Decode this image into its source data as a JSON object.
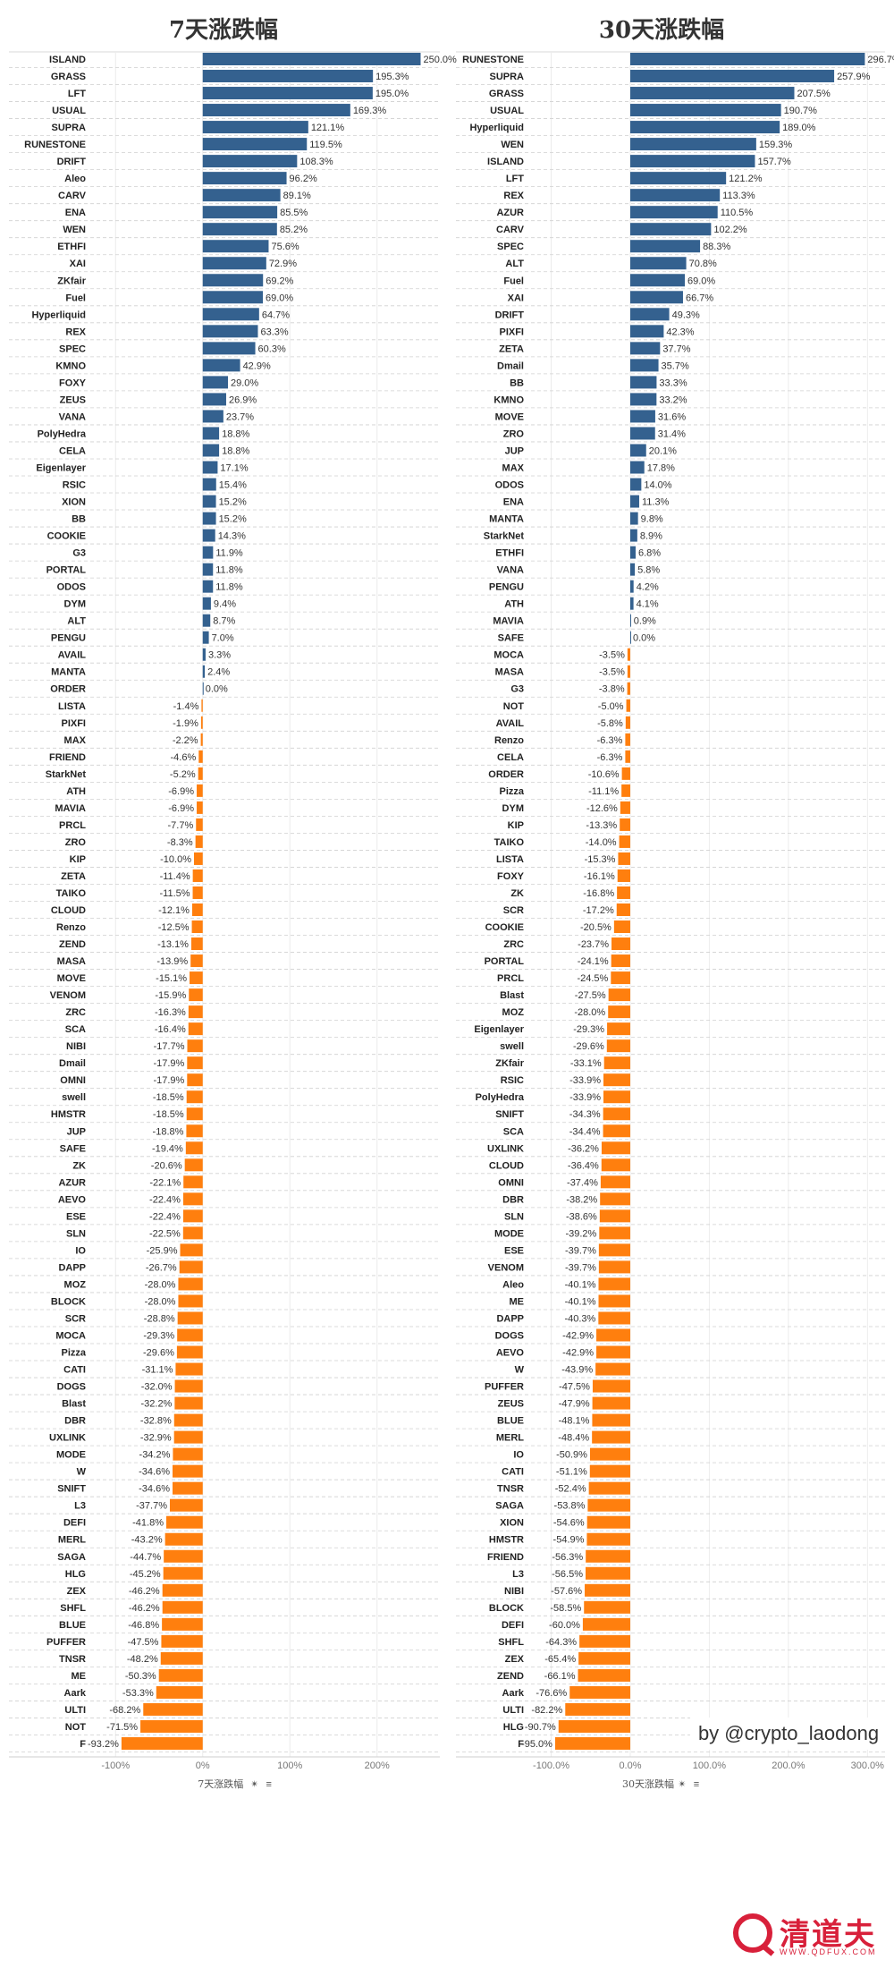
{
  "credit": "by @crypto_laodong",
  "logo": {
    "name": "清道夫",
    "site": "WWW.QDFUX.COM"
  },
  "colors": {
    "positive": "#34618f",
    "negative": "#ff7f0e"
  },
  "chart_data": [
    {
      "type": "bar",
      "orientation": "horizontal",
      "title": "7天涨跌幅",
      "xlabel": "7天涨跌幅",
      "xlim": [
        -130,
        270
      ],
      "xticks": [
        -100,
        0,
        100,
        200
      ],
      "xtick_labels": [
        "-100%",
        "0%",
        "100%",
        "200%"
      ],
      "categories": [
        "ISLAND",
        "GRASS",
        "LFT",
        "USUAL",
        "SUPRA",
        "RUNESTONE",
        "DRIFT",
        "Aleo",
        "CARV",
        "ENA",
        "WEN",
        "ETHFI",
        "XAI",
        "ZKfair",
        "Fuel",
        "Hyperliquid",
        "REX",
        "SPEC",
        "KMNO",
        "FOXY",
        "ZEUS",
        "VANA",
        "PolyHedra",
        "CELA",
        "Eigenlayer",
        "RSIC",
        "XION",
        "BB",
        "COOKIE",
        "G3",
        "PORTAL",
        "ODOS",
        "DYM",
        "ALT",
        "PENGU",
        "AVAIL",
        "MANTA",
        "ORDER",
        "LISTA",
        "PIXFI",
        "MAX",
        "FRIEND",
        "StarkNet",
        "ATH",
        "MAVIA",
        "PRCL",
        "ZRO",
        "KIP",
        "ZETA",
        "TAIKO",
        "CLOUD",
        "Renzo",
        "ZEND",
        "MASA",
        "MOVE",
        "VENOM",
        "ZRC",
        "SCA",
        "NIBI",
        "Dmail",
        "OMNI",
        "swell",
        "HMSTR",
        "JUP",
        "SAFE",
        "ZK",
        "AZUR",
        "AEVO",
        "ESE",
        "SLN",
        "IO",
        "DAPP",
        "MOZ",
        "BLOCK",
        "SCR",
        "MOCA",
        "Pizza",
        "CATI",
        "DOGS",
        "Blast",
        "DBR",
        "UXLINK",
        "MODE",
        "W",
        "SNIFT",
        "L3",
        "DEFI",
        "MERL",
        "SAGA",
        "HLG",
        "ZEX",
        "SHFL",
        "BLUE",
        "PUFFER",
        "TNSR",
        "ME",
        "Aark",
        "ULTI",
        "NOT",
        "F"
      ],
      "values": [
        250.0,
        195.3,
        195.0,
        169.3,
        121.1,
        119.5,
        108.3,
        96.2,
        89.1,
        85.5,
        85.2,
        75.6,
        72.9,
        69.2,
        69.0,
        64.7,
        63.3,
        60.3,
        42.9,
        29.0,
        26.9,
        23.7,
        18.8,
        18.8,
        17.1,
        15.4,
        15.2,
        15.2,
        14.3,
        11.9,
        11.8,
        11.8,
        9.4,
        8.7,
        7.0,
        3.3,
        2.4,
        0.0,
        -1.4,
        -1.9,
        -2.2,
        -4.6,
        -5.2,
        -6.9,
        -6.9,
        -7.7,
        -8.3,
        -10.0,
        -11.4,
        -11.5,
        -12.1,
        -12.5,
        -13.1,
        -13.9,
        -15.1,
        -15.9,
        -16.3,
        -16.4,
        -17.7,
        -17.9,
        -17.9,
        -18.5,
        -18.5,
        -18.8,
        -19.4,
        -20.6,
        -22.1,
        -22.4,
        -22.4,
        -22.5,
        -25.9,
        -26.7,
        -28.0,
        -28.0,
        -28.8,
        -29.3,
        -29.6,
        -31.1,
        -32.0,
        -32.2,
        -32.8,
        -32.9,
        -34.2,
        -34.6,
        -34.6,
        -37.7,
        -41.8,
        -43.2,
        -44.7,
        -45.2,
        -46.2,
        -46.2,
        -46.8,
        -47.5,
        -48.2,
        -50.3,
        -53.3,
        -68.2,
        -71.5,
        -93.2
      ],
      "value_labels": [
        "250.0%",
        "195.3%",
        "195.0%",
        "169.3%",
        "121.1%",
        "119.5%",
        "108.3%",
        "96.2%",
        "89.1%",
        "85.5%",
        "85.2%",
        "75.6%",
        "72.9%",
        "69.2%",
        "69.0%",
        "64.7%",
        "63.3%",
        "60.3%",
        "42.9%",
        "29.0%",
        "26.9%",
        "23.7%",
        "18.8%",
        "18.8%",
        "17.1%",
        "15.4%",
        "15.2%",
        "15.2%",
        "14.3%",
        "11.9%",
        "11.8%",
        "11.8%",
        "9.4%",
        "8.7%",
        "7.0%",
        "3.3%",
        "2.4%",
        "0.0%",
        "-1.4%",
        "-1.9%",
        "-2.2%",
        "-4.6%",
        "-5.2%",
        "-6.9%",
        "-6.9%",
        "-7.7%",
        "-8.3%",
        "-10.0%",
        "-11.4%",
        "-11.5%",
        "-12.1%",
        "-12.5%",
        "-13.1%",
        "-13.9%",
        "-15.1%",
        "-15.9%",
        "-16.3%",
        "-16.4%",
        "-17.7%",
        "-17.9%",
        "-17.9%",
        "-18.5%",
        "-18.5%",
        "-18.8%",
        "-19.4%",
        "-20.6%",
        "-22.1%",
        "-22.4%",
        "-22.4%",
        "-22.5%",
        "-25.9%",
        "-26.7%",
        "-28.0%",
        "-28.0%",
        "-28.8%",
        "-29.3%",
        "-29.6%",
        "-31.1%",
        "-32.0%",
        "-32.2%",
        "-32.8%",
        "-32.9%",
        "-34.2%",
        "-34.6%",
        "-34.6%",
        "-37.7%",
        "-41.8%",
        "-43.2%",
        "-44.7%",
        "-45.2%",
        "-46.2%",
        "-46.2%",
        "-46.8%",
        "-47.5%",
        "-48.2%",
        "-50.3%",
        "-53.3%",
        "-68.2%",
        "-71.5%",
        "-93.2%"
      ]
    },
    {
      "type": "bar",
      "orientation": "horizontal",
      "title": "30天涨跌幅",
      "xlabel": "30天涨跌幅",
      "xlim": [
        -130,
        320
      ],
      "xticks": [
        -100,
        0,
        100,
        200,
        300
      ],
      "xtick_labels": [
        "-100.0%",
        "0.0%",
        "100.0%",
        "200.0%",
        "300.0%"
      ],
      "categories": [
        "RUNESTONE",
        "SUPRA",
        "GRASS",
        "USUAL",
        "Hyperliquid",
        "WEN",
        "ISLAND",
        "LFT",
        "REX",
        "AZUR",
        "CARV",
        "SPEC",
        "ALT",
        "Fuel",
        "XAI",
        "DRIFT",
        "PIXFI",
        "ZETA",
        "Dmail",
        "BB",
        "KMNO",
        "MOVE",
        "ZRO",
        "JUP",
        "MAX",
        "ODOS",
        "ENA",
        "MANTA",
        "StarkNet",
        "ETHFI",
        "VANA",
        "PENGU",
        "ATH",
        "MAVIA",
        "SAFE",
        "MOCA",
        "MASA",
        "G3",
        "NOT",
        "AVAIL",
        "Renzo",
        "CELA",
        "ORDER",
        "Pizza",
        "DYM",
        "KIP",
        "TAIKO",
        "LISTA",
        "FOXY",
        "ZK",
        "SCR",
        "COOKIE",
        "ZRC",
        "PORTAL",
        "PRCL",
        "Blast",
        "MOZ",
        "Eigenlayer",
        "swell",
        "ZKfair",
        "RSIC",
        "PolyHedra",
        "SNIFT",
        "SCA",
        "UXLINK",
        "CLOUD",
        "OMNI",
        "DBR",
        "SLN",
        "MODE",
        "ESE",
        "VENOM",
        "Aleo",
        "ME",
        "DAPP",
        "DOGS",
        "AEVO",
        "W",
        "PUFFER",
        "ZEUS",
        "BLUE",
        "MERL",
        "IO",
        "CATI",
        "TNSR",
        "SAGA",
        "XION",
        "HMSTR",
        "FRIEND",
        "L3",
        "NIBI",
        "BLOCK",
        "DEFI",
        "SHFL",
        "ZEX",
        "ZEND",
        "Aark",
        "ULTI",
        "HLG",
        "F"
      ],
      "values": [
        296.7,
        257.9,
        207.5,
        190.7,
        189.0,
        159.3,
        157.7,
        121.2,
        113.3,
        110.5,
        102.2,
        88.3,
        70.8,
        69.0,
        66.7,
        49.3,
        42.3,
        37.7,
        35.7,
        33.3,
        33.2,
        31.6,
        31.4,
        20.1,
        17.8,
        14.0,
        11.3,
        9.8,
        8.9,
        6.8,
        5.8,
        4.2,
        4.1,
        0.9,
        0.0,
        -3.5,
        -3.5,
        -3.8,
        -5.0,
        -5.8,
        -6.3,
        -6.3,
        -10.6,
        -11.1,
        -12.6,
        -13.3,
        -14.0,
        -15.3,
        -16.1,
        -16.8,
        -17.2,
        -20.5,
        -23.7,
        -24.1,
        -24.5,
        -27.5,
        -28.0,
        -29.3,
        -29.6,
        -33.1,
        -33.9,
        -33.9,
        -34.3,
        -34.4,
        -36.2,
        -36.4,
        -37.4,
        -38.2,
        -38.6,
        -39.2,
        -39.7,
        -39.7,
        -40.1,
        -40.1,
        -40.3,
        -42.9,
        -42.9,
        -43.9,
        -47.5,
        -47.9,
        -48.1,
        -48.4,
        -50.9,
        -51.1,
        -52.4,
        -53.8,
        -54.6,
        -54.9,
        -56.3,
        -56.5,
        -57.6,
        -58.5,
        -60.0,
        -64.3,
        -65.4,
        -66.1,
        -76.6,
        -82.2,
        -90.7,
        -95.0
      ],
      "value_labels": [
        "296.7%",
        "257.9%",
        "207.5%",
        "190.7%",
        "189.0%",
        "159.3%",
        "157.7%",
        "121.2%",
        "113.3%",
        "110.5%",
        "102.2%",
        "88.3%",
        "70.8%",
        "69.0%",
        "66.7%",
        "49.3%",
        "42.3%",
        "37.7%",
        "35.7%",
        "33.3%",
        "33.2%",
        "31.6%",
        "31.4%",
        "20.1%",
        "17.8%",
        "14.0%",
        "11.3%",
        "9.8%",
        "8.9%",
        "6.8%",
        "5.8%",
        "4.2%",
        "4.1%",
        "0.9%",
        "0.0%",
        "-3.5%",
        "-3.5%",
        "-3.8%",
        "-5.0%",
        "-5.8%",
        "-6.3%",
        "-6.3%",
        "-10.6%",
        "-11.1%",
        "-12.6%",
        "-13.3%",
        "-14.0%",
        "-15.3%",
        "-16.1%",
        "-16.8%",
        "-17.2%",
        "-20.5%",
        "-23.7%",
        "-24.1%",
        "-24.5%",
        "-27.5%",
        "-28.0%",
        "-29.3%",
        "-29.6%",
        "-33.1%",
        "-33.9%",
        "-33.9%",
        "-34.3%",
        "-34.4%",
        "-36.2%",
        "-36.4%",
        "-37.4%",
        "-38.2%",
        "-38.6%",
        "-39.2%",
        "-39.7%",
        "-39.7%",
        "-40.1%",
        "-40.1%",
        "-40.3%",
        "-42.9%",
        "-42.9%",
        "-43.9%",
        "-47.5%",
        "-47.9%",
        "-48.1%",
        "-48.4%",
        "-50.9%",
        "-51.1%",
        "-52.4%",
        "-53.8%",
        "-54.6%",
        "-54.9%",
        "-56.3%",
        "-56.5%",
        "-57.6%",
        "-58.5%",
        "-60.0%",
        "-64.3%",
        "-65.4%",
        "-66.1%",
        "-76.6%",
        "-82.2%",
        "-90.7%",
        "-95.0%"
      ]
    }
  ]
}
